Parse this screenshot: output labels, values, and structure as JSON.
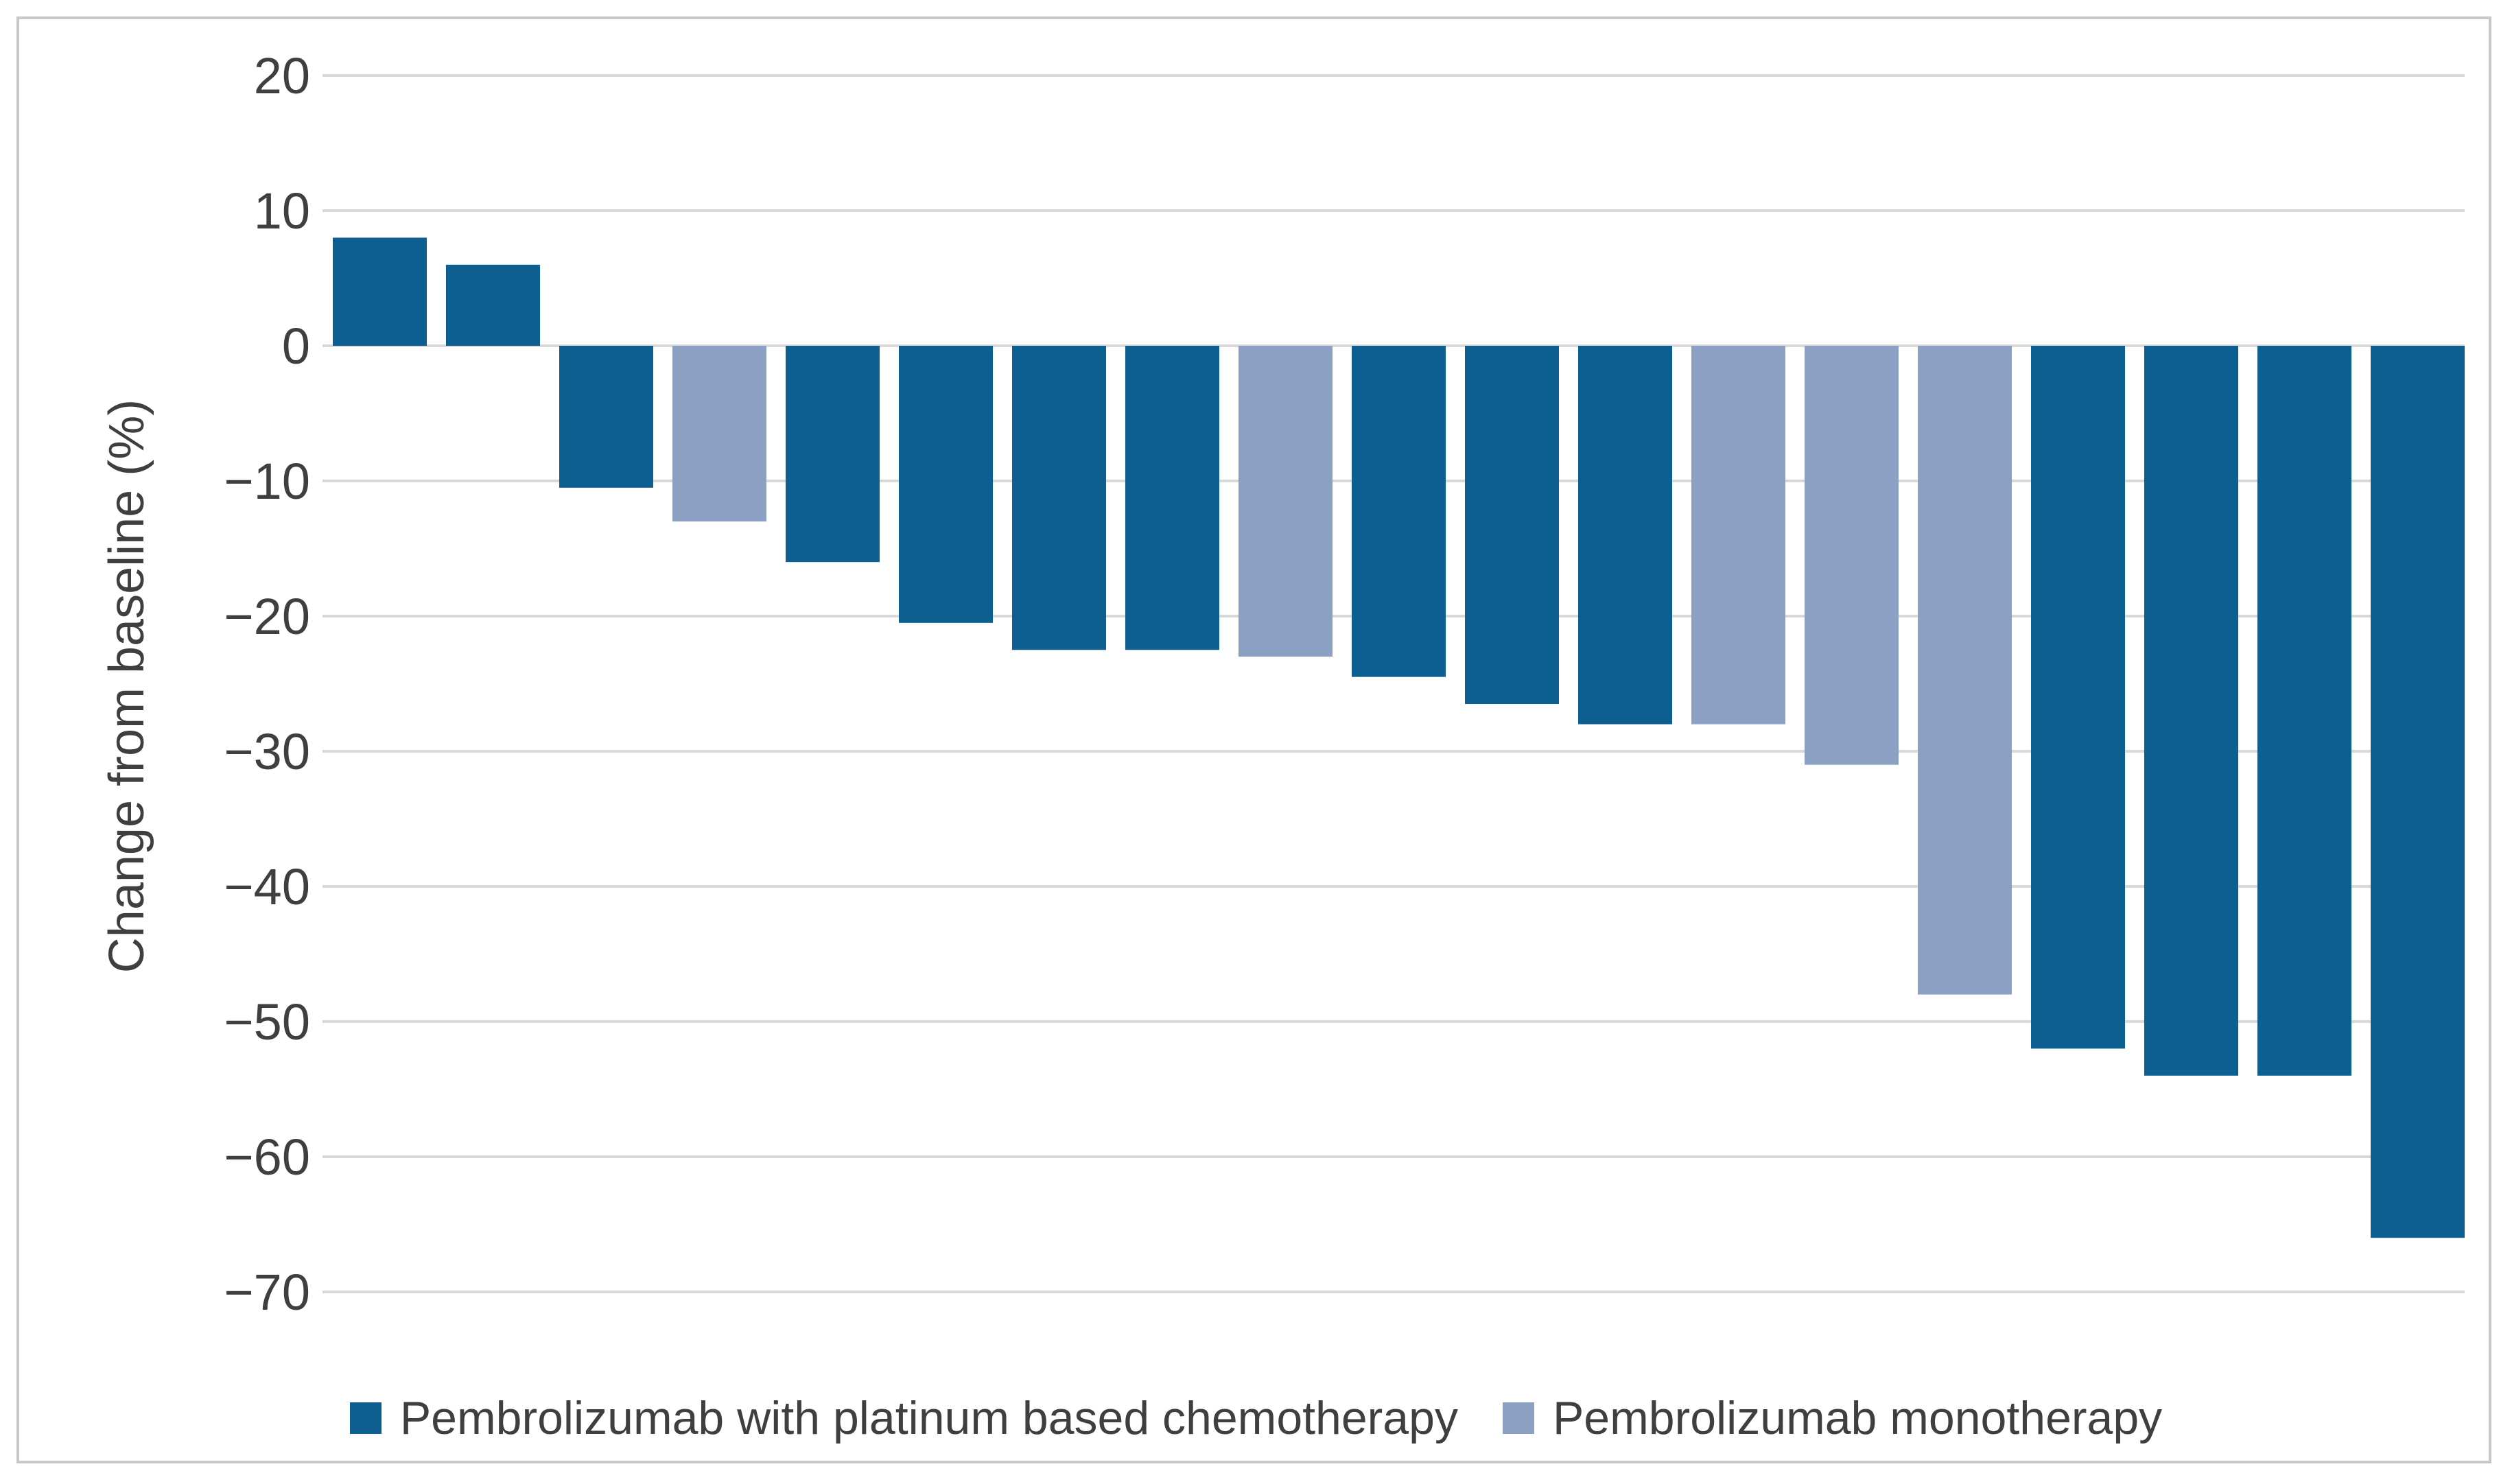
{
  "chart_data": {
    "type": "bar",
    "subtype": "waterfall",
    "title": "",
    "xlabel": "",
    "ylabel": "Change from baseline (%)",
    "ylim": [
      -70,
      20
    ],
    "yticks": [
      20,
      10,
      0,
      -10,
      -20,
      -30,
      -40,
      -50,
      -60,
      -70
    ],
    "grid": true,
    "legend_position": "bottom",
    "series": [
      {
        "name": "Pembrolizumab with platinum based chemotherapy",
        "color": "#0d5f92"
      },
      {
        "name": "Pembrolizumab monotherapy",
        "color": "#8ba0c2"
      }
    ],
    "bars": [
      {
        "value": 8,
        "series": 0
      },
      {
        "value": 6,
        "series": 0
      },
      {
        "value": -10.5,
        "series": 0
      },
      {
        "value": -13,
        "series": 1
      },
      {
        "value": -16,
        "series": 0
      },
      {
        "value": -20.5,
        "series": 0
      },
      {
        "value": -22.5,
        "series": 0
      },
      {
        "value": -22.5,
        "series": 0
      },
      {
        "value": -23,
        "series": 1
      },
      {
        "value": -24.5,
        "series": 0
      },
      {
        "value": -26.5,
        "series": 0
      },
      {
        "value": -28,
        "series": 0
      },
      {
        "value": -28,
        "series": 1
      },
      {
        "value": -31,
        "series": 1
      },
      {
        "value": -48,
        "series": 1
      },
      {
        "value": -52,
        "series": 0
      },
      {
        "value": -54,
        "series": 0
      },
      {
        "value": -54,
        "series": 0
      },
      {
        "value": -66,
        "series": 0
      }
    ],
    "colors": {
      "gridline": "#d9d9d9",
      "text": "#3f3f3f",
      "frame_border": "#c7c7c7"
    }
  }
}
